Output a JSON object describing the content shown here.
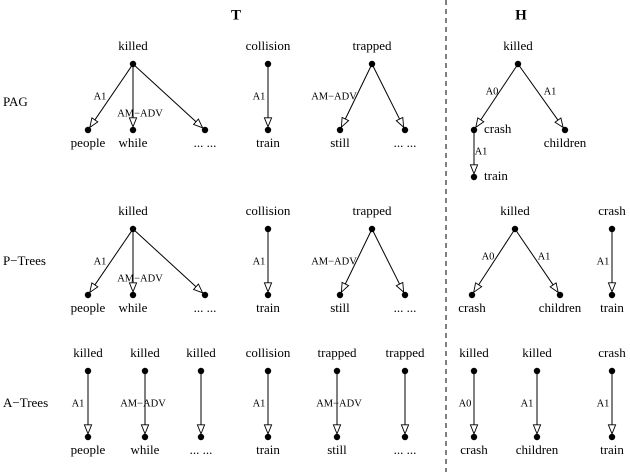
{
  "columns": [
    {
      "label": "T"
    },
    {
      "label": "H"
    }
  ],
  "rows": [
    {
      "label": "PAG"
    },
    {
      "label": "P−Trees"
    },
    {
      "label": "A−Trees"
    }
  ],
  "nodes": [
    {
      "label": "killed"
    },
    {
      "label": "people"
    },
    {
      "label": "while"
    },
    {
      "label": "... ..."
    },
    {
      "label": "collision"
    },
    {
      "label": "train"
    },
    {
      "label": "trapped"
    },
    {
      "label": "still"
    },
    {
      "label": "... ..."
    },
    {
      "label": "killed"
    },
    {
      "label": "crash"
    },
    {
      "label": "children"
    },
    {
      "label": "train"
    },
    {
      "label": "killed"
    },
    {
      "label": "people"
    },
    {
      "label": "while"
    },
    {
      "label": "... ..."
    },
    {
      "label": "collision"
    },
    {
      "label": "train"
    },
    {
      "label": "trapped"
    },
    {
      "label": "still"
    },
    {
      "label": "... ..."
    },
    {
      "label": "killed"
    },
    {
      "label": "crash"
    },
    {
      "label": "children"
    },
    {
      "label": "crash"
    },
    {
      "label": "train"
    },
    {
      "label": "killed"
    },
    {
      "label": "people"
    },
    {
      "label": "killed"
    },
    {
      "label": "while"
    },
    {
      "label": "killed"
    },
    {
      "label": "... ..."
    },
    {
      "label": "collision"
    },
    {
      "label": "train"
    },
    {
      "label": "trapped"
    },
    {
      "label": "still"
    },
    {
      "label": "trapped"
    },
    {
      "label": "... ..."
    },
    {
      "label": "killed"
    },
    {
      "label": "crash"
    },
    {
      "label": "killed"
    },
    {
      "label": "children"
    },
    {
      "label": "crash"
    },
    {
      "label": "train"
    }
  ],
  "edges": [
    {
      "label": "A1"
    },
    {
      "label": "AM−ADV"
    },
    {
      "label": ""
    },
    {
      "label": "A1"
    },
    {
      "label": "AM−ADV"
    },
    {
      "label": ""
    },
    {
      "label": "A0"
    },
    {
      "label": "A1"
    },
    {
      "label": "A1"
    },
    {
      "label": "A1"
    },
    {
      "label": "AM−ADV"
    },
    {
      "label": ""
    },
    {
      "label": "A1"
    },
    {
      "label": "AM−ADV"
    },
    {
      "label": ""
    },
    {
      "label": "A0"
    },
    {
      "label": "A1"
    },
    {
      "label": "A1"
    },
    {
      "label": "A1"
    },
    {
      "label": "AM−ADV"
    },
    {
      "label": ""
    },
    {
      "label": "A1"
    },
    {
      "label": "AM−ADV"
    },
    {
      "label": ""
    },
    {
      "label": "A0"
    },
    {
      "label": "A1"
    },
    {
      "label": "A1"
    }
  ]
}
